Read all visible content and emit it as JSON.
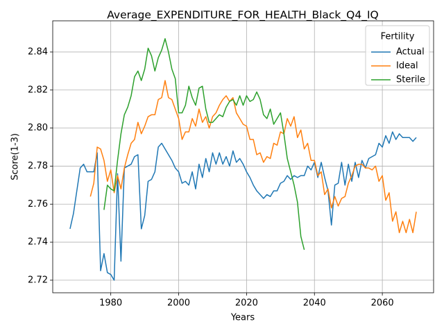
{
  "chart_data": {
    "type": "line",
    "title": "Average_EXPENDITURE_FOR_HEALTH_Black_Q4_IQ",
    "x_label": "Years",
    "y_label": "Score(1-3)",
    "xlim": [
      1962.9,
      2075.1
    ],
    "ylim": [
      2.7134,
      2.8564
    ],
    "xticks": [
      1980,
      2000,
      2020,
      2040,
      2060
    ],
    "yticks": [
      2.72,
      2.74,
      2.76,
      2.78,
      {
        "value": 2.8,
        "label": "2.80"
      },
      2.82,
      2.84
    ],
    "grid": true,
    "legend_title": "Fertility",
    "legend_loc": "upper right",
    "series": [
      {
        "name": "Actual",
        "color": "#1f77b4",
        "x": [
          1968,
          1969,
          1970,
          1971,
          1972,
          1973,
          1974,
          1975,
          1976,
          1977,
          1978,
          1979,
          1980,
          1981,
          1982,
          1983,
          1984,
          1985,
          1986,
          1987,
          1988,
          1989,
          1990,
          1991,
          1992,
          1993,
          1994,
          1995,
          1996,
          1997,
          1998,
          1999,
          2000,
          2001,
          2002,
          2003,
          2004,
          2005,
          2006,
          2007,
          2008,
          2009,
          2010,
          2011,
          2012,
          2013,
          2014,
          2015,
          2016,
          2017,
          2018,
          2019,
          2020,
          2021,
          2022,
          2023,
          2024,
          2025,
          2026,
          2027,
          2028,
          2029,
          2030,
          2031,
          2032,
          2033,
          2034,
          2035,
          2036,
          2037,
          2038,
          2039,
          2040,
          2041,
          2042,
          2043,
          2044,
          2045,
          2046,
          2047,
          2048,
          2049,
          2050,
          2051,
          2052,
          2053,
          2054,
          2055,
          2056,
          2057,
          2058,
          2059,
          2060,
          2061,
          2062,
          2063,
          2064,
          2065,
          2066,
          2067,
          2068,
          2069,
          2070
        ],
        "values": [
          2.747,
          2.755,
          2.767,
          2.779,
          2.781,
          2.777,
          2.777,
          2.777,
          2.787,
          2.725,
          2.734,
          2.724,
          2.723,
          2.72,
          2.776,
          2.73,
          2.779,
          2.78,
          2.781,
          2.785,
          2.786,
          2.747,
          2.754,
          2.772,
          2.773,
          2.777,
          2.79,
          2.792,
          2.789,
          2.786,
          2.783,
          2.779,
          2.777,
          2.771,
          2.772,
          2.77,
          2.777,
          2.768,
          2.781,
          2.774,
          2.784,
          2.777,
          2.787,
          2.781,
          2.787,
          2.781,
          2.785,
          2.78,
          2.788,
          2.782,
          2.784,
          2.781,
          2.777,
          2.774,
          2.77,
          2.767,
          2.765,
          2.763,
          2.765,
          2.764,
          2.767,
          2.767,
          2.771,
          2.772,
          2.775,
          2.773,
          2.775,
          2.774,
          2.775,
          2.775,
          2.78,
          2.778,
          2.782,
          2.774,
          2.782,
          2.774,
          2.767,
          2.749,
          2.77,
          2.771,
          2.782,
          2.77,
          2.781,
          2.772,
          2.782,
          2.774,
          2.783,
          2.779,
          2.784,
          2.785,
          2.786,
          2.792,
          2.79,
          2.796,
          2.792,
          2.798,
          2.794,
          2.797,
          2.795,
          2.795,
          2.795,
          2.793,
          2.795
        ]
      },
      {
        "name": "Ideal",
        "color": "#ff7f0e",
        "x": [
          1974,
          1975,
          1976,
          1977,
          1978,
          1979,
          1980,
          1981,
          1982,
          1983,
          1984,
          1985,
          1986,
          1987,
          1988,
          1989,
          1990,
          1991,
          1992,
          1993,
          1994,
          1995,
          1996,
          1997,
          1998,
          1999,
          2000,
          2001,
          2002,
          2003,
          2004,
          2005,
          2006,
          2007,
          2008,
          2009,
          2010,
          2011,
          2012,
          2013,
          2014,
          2015,
          2016,
          2017,
          2018,
          2019,
          2020,
          2021,
          2022,
          2023,
          2024,
          2025,
          2026,
          2027,
          2028,
          2029,
          2030,
          2031,
          2032,
          2033,
          2034,
          2035,
          2036,
          2037,
          2038,
          2039,
          2040,
          2041,
          2042,
          2043,
          2044,
          2045,
          2046,
          2047,
          2048,
          2049,
          2050,
          2051,
          2052,
          2053,
          2054,
          2055,
          2056,
          2057,
          2058,
          2059,
          2060,
          2061,
          2062,
          2063,
          2064,
          2065,
          2066,
          2067,
          2068,
          2069,
          2070
        ],
        "values": [
          2.764,
          2.771,
          2.79,
          2.789,
          2.783,
          2.772,
          2.778,
          2.766,
          2.775,
          2.768,
          2.779,
          2.786,
          2.792,
          2.794,
          2.803,
          2.797,
          2.801,
          2.806,
          2.807,
          2.807,
          2.815,
          2.816,
          2.825,
          2.816,
          2.815,
          2.81,
          2.805,
          2.794,
          2.798,
          2.798,
          2.805,
          2.801,
          2.81,
          2.803,
          2.806,
          2.8,
          2.806,
          2.808,
          2.812,
          2.815,
          2.817,
          2.814,
          2.816,
          2.808,
          2.805,
          2.802,
          2.801,
          2.794,
          2.794,
          2.786,
          2.787,
          2.782,
          2.785,
          2.784,
          2.792,
          2.791,
          2.798,
          2.797,
          2.805,
          2.801,
          2.806,
          2.795,
          2.799,
          2.789,
          2.792,
          2.783,
          2.783,
          2.775,
          2.777,
          2.765,
          2.768,
          2.758,
          2.764,
          2.759,
          2.763,
          2.764,
          2.771,
          2.775,
          2.78,
          2.781,
          2.781,
          2.779,
          2.779,
          2.778,
          2.78,
          2.772,
          2.775,
          2.762,
          2.766,
          2.751,
          2.756,
          2.745,
          2.751,
          2.745,
          2.752,
          2.745,
          2.756
        ]
      },
      {
        "name": "Sterile",
        "color": "#2ca02c",
        "x": [
          1978,
          1979,
          1980,
          1981,
          1982,
          1983,
          1984,
          1985,
          1986,
          1987,
          1988,
          1989,
          1990,
          1991,
          1992,
          1993,
          1994,
          1995,
          1996,
          1997,
          1998,
          1999,
          2000,
          2001,
          2002,
          2003,
          2004,
          2005,
          2006,
          2007,
          2008,
          2009,
          2010,
          2011,
          2012,
          2013,
          2014,
          2015,
          2016,
          2017,
          2018,
          2019,
          2020,
          2021,
          2022,
          2023,
          2024,
          2025,
          2026,
          2027,
          2028,
          2029,
          2030,
          2031,
          2032,
          2033,
          2034,
          2035,
          2036,
          2037
        ],
        "values": [
          2.757,
          2.77,
          2.768,
          2.767,
          2.783,
          2.797,
          2.807,
          2.811,
          2.817,
          2.827,
          2.83,
          2.825,
          2.831,
          2.842,
          2.838,
          2.83,
          2.837,
          2.841,
          2.847,
          2.84,
          2.831,
          2.826,
          2.808,
          2.808,
          2.812,
          2.822,
          2.816,
          2.812,
          2.821,
          2.822,
          2.81,
          2.803,
          2.803,
          2.805,
          2.807,
          2.806,
          2.811,
          2.814,
          2.815,
          2.812,
          2.817,
          2.812,
          2.817,
          2.814,
          2.815,
          2.819,
          2.815,
          2.807,
          2.805,
          2.81,
          2.802,
          2.805,
          2.808,
          2.797,
          2.784,
          2.777,
          2.77,
          2.761,
          2.743,
          2.736
        ]
      }
    ]
  }
}
